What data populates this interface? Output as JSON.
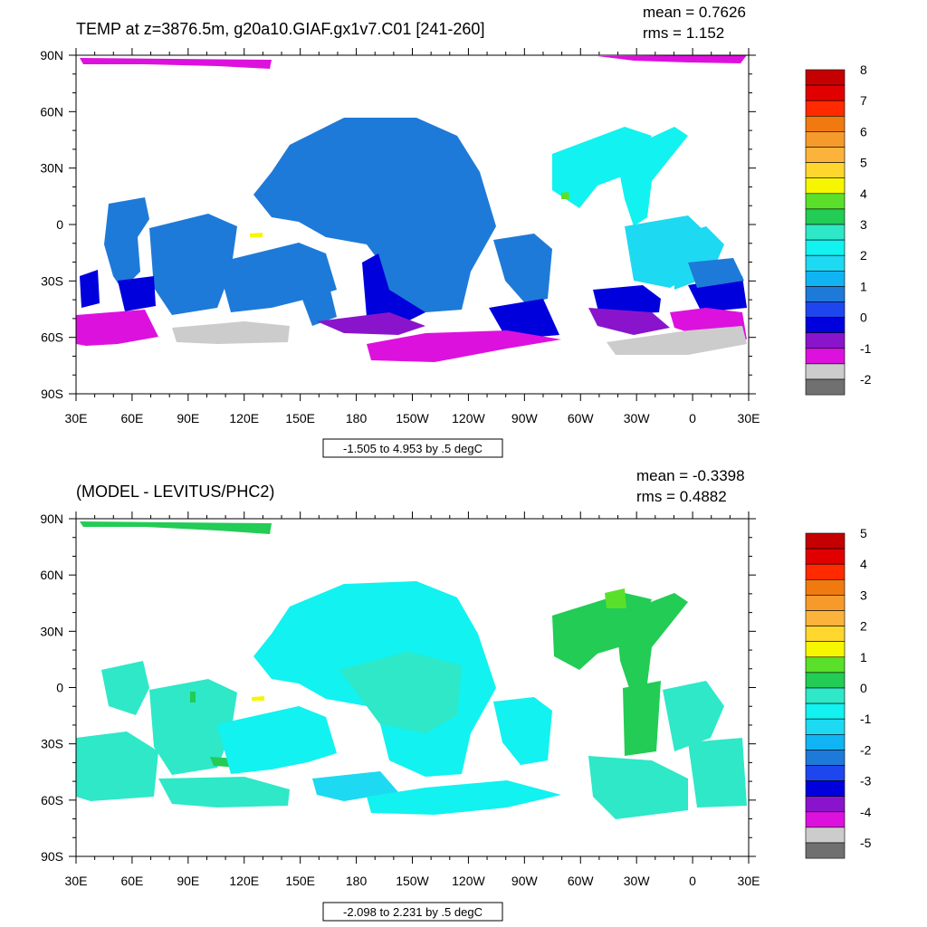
{
  "panels": [
    {
      "title": "TEMP at z=3876.5m, g20a10.GIAF.gx1v7.C01 [241-260]",
      "mean": "mean = 0.7626",
      "rms": "rms = 1.152",
      "range_label": "-1.505 to 4.953 by .5 degC",
      "colorbar": {
        "labels": [
          "8",
          "7",
          "6",
          "5",
          "4",
          "3",
          "2",
          "1",
          "0",
          "-1",
          "-2"
        ],
        "colors": [
          "#c40000",
          "#e10000",
          "#ff2a00",
          "#f07a10",
          "#f79a2c",
          "#fbb33c",
          "#fed62e",
          "#f6f600",
          "#5ae02a",
          "#22cc55",
          "#2ee8c8",
          "#12f2f0",
          "#1ed9f2",
          "#10b4f2",
          "#1e7ad8",
          "#1e46ee",
          "#0000dd",
          "#8a14cc",
          "#dd11dd",
          "#cccccc",
          "#707070"
        ]
      },
      "chart_data": {
        "type": "heatmap",
        "title": "TEMP at z=3876.5m, g20a10.GIAF.gx1v7.C01 [241-260]",
        "projection": "cylindrical-equidistant",
        "x_ticks": [
          "30E",
          "60E",
          "90E",
          "120E",
          "150E",
          "180",
          "150W",
          "120W",
          "90W",
          "60W",
          "30W",
          "0",
          "30E"
        ],
        "y_ticks": [
          "90N",
          "60N",
          "30N",
          "0",
          "30S",
          "60S",
          "90S"
        ],
        "value_range": [
          -1.505,
          4.953
        ],
        "contour_interval": 0.5,
        "units": "degC",
        "mean": 0.7626,
        "rms": 1.152,
        "colorbar_range": [
          -2,
          8
        ]
      }
    },
    {
      "title": "(MODEL - LEVITUS/PHC2)",
      "mean": "mean = -0.3398",
      "rms": "rms = 0.4882",
      "range_label": "-2.098 to 2.231 by .5 degC",
      "colorbar": {
        "labels": [
          "5",
          "4",
          "3",
          "2",
          "1",
          "0",
          "-1",
          "-2",
          "-3",
          "-4",
          "-5"
        ],
        "colors": [
          "#c40000",
          "#e10000",
          "#ff2a00",
          "#f07a10",
          "#f79a2c",
          "#fbb33c",
          "#fed62e",
          "#f6f600",
          "#5ae02a",
          "#22cc55",
          "#2ee8c8",
          "#12f2f0",
          "#1ed9f2",
          "#10b4f2",
          "#1e7ad8",
          "#1e46ee",
          "#0000dd",
          "#8a14cc",
          "#dd11dd",
          "#cccccc",
          "#707070"
        ]
      },
      "chart_data": {
        "type": "heatmap",
        "title": "(MODEL - LEVITUS/PHC2)",
        "projection": "cylindrical-equidistant",
        "x_ticks": [
          "30E",
          "60E",
          "90E",
          "120E",
          "150E",
          "180",
          "150W",
          "120W",
          "90W",
          "60W",
          "30W",
          "0",
          "30E"
        ],
        "y_ticks": [
          "90N",
          "60N",
          "30N",
          "0",
          "30S",
          "60S",
          "90S"
        ],
        "value_range": [
          -2.098,
          2.231
        ],
        "contour_interval": 0.5,
        "units": "degC",
        "mean": -0.3398,
        "rms": 0.4882,
        "colorbar_range": [
          -5,
          5
        ]
      }
    }
  ]
}
